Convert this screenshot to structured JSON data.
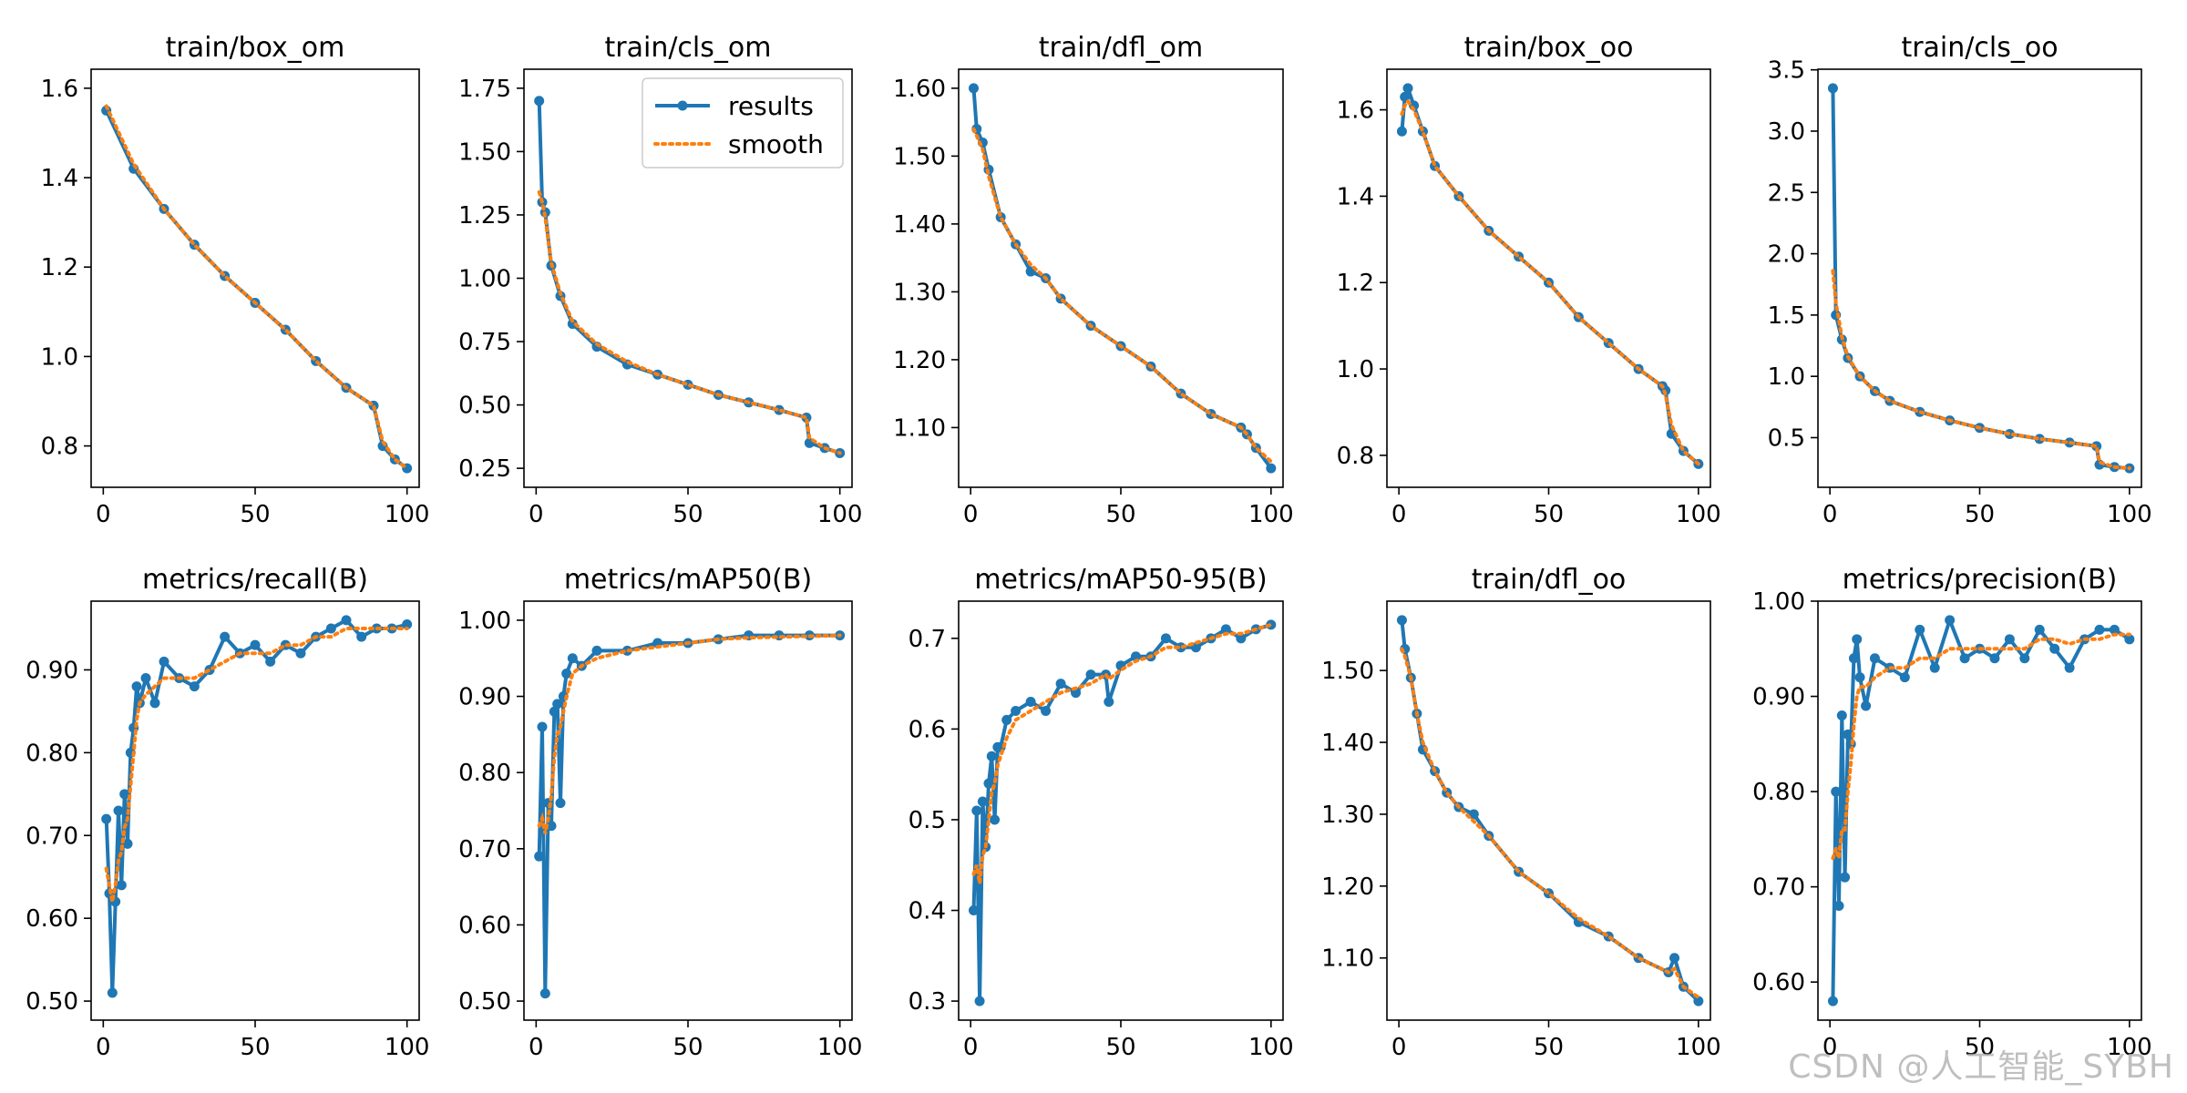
{
  "watermark": "CSDN @人工智能_SYBH",
  "style": {
    "results_color": "#1f77b4",
    "smooth_color": "#ff7f0e"
  },
  "legend": {
    "entries": [
      "results",
      "smooth"
    ],
    "panel": 1,
    "placement": "upper-right"
  },
  "chart_data": [
    {
      "type": "line",
      "title": "train/box_om",
      "xlim": [
        0,
        100
      ],
      "xticks": [
        0,
        50,
        100
      ],
      "ylim": [
        0.75,
        1.6
      ],
      "yticks": [
        0.8,
        1.0,
        1.2,
        1.4,
        1.6
      ],
      "x": [
        1,
        10,
        20,
        30,
        40,
        50,
        60,
        70,
        80,
        89,
        92,
        96,
        100
      ],
      "series": [
        {
          "name": "results",
          "values": [
            1.55,
            1.42,
            1.33,
            1.25,
            1.18,
            1.12,
            1.06,
            0.99,
            0.93,
            0.89,
            0.8,
            0.77,
            0.75
          ]
        },
        {
          "name": "smooth",
          "values": [
            1.56,
            1.43,
            1.33,
            1.25,
            1.18,
            1.12,
            1.06,
            0.99,
            0.93,
            0.89,
            0.81,
            0.77,
            0.75
          ]
        }
      ]
    },
    {
      "type": "line",
      "title": "train/cls_om",
      "xlim": [
        0,
        100
      ],
      "xticks": [
        0,
        50,
        100
      ],
      "ylim": [
        0.25,
        1.75
      ],
      "yticks": [
        0.25,
        0.5,
        0.75,
        1.0,
        1.25,
        1.5,
        1.75
      ],
      "x": [
        1,
        2,
        3,
        5,
        8,
        12,
        20,
        30,
        40,
        50,
        60,
        70,
        80,
        89,
        90,
        95,
        100
      ],
      "series": [
        {
          "name": "results",
          "values": [
            1.7,
            1.3,
            1.26,
            1.05,
            0.93,
            0.82,
            0.73,
            0.66,
            0.62,
            0.58,
            0.54,
            0.51,
            0.48,
            0.45,
            0.35,
            0.33,
            0.31
          ]
        },
        {
          "name": "smooth",
          "values": [
            1.34,
            1.3,
            1.24,
            1.06,
            0.94,
            0.83,
            0.74,
            0.67,
            0.62,
            0.58,
            0.54,
            0.51,
            0.48,
            0.45,
            0.37,
            0.33,
            0.31
          ]
        }
      ]
    },
    {
      "type": "line",
      "title": "train/dfl_om",
      "xlim": [
        0,
        100
      ],
      "xticks": [
        0,
        50,
        100
      ],
      "ylim": [
        1.04,
        1.6
      ],
      "yticks": [
        1.1,
        1.2,
        1.3,
        1.4,
        1.5,
        1.6
      ],
      "x": [
        1,
        2,
        4,
        6,
        10,
        15,
        20,
        25,
        30,
        40,
        50,
        60,
        70,
        80,
        90,
        92,
        95,
        100
      ],
      "series": [
        {
          "name": "results",
          "values": [
            1.6,
            1.54,
            1.52,
            1.48,
            1.41,
            1.37,
            1.33,
            1.32,
            1.29,
            1.25,
            1.22,
            1.19,
            1.15,
            1.12,
            1.1,
            1.09,
            1.07,
            1.04
          ]
        },
        {
          "name": "smooth",
          "values": [
            1.54,
            1.53,
            1.51,
            1.47,
            1.41,
            1.37,
            1.34,
            1.32,
            1.29,
            1.25,
            1.22,
            1.19,
            1.15,
            1.12,
            1.1,
            1.09,
            1.07,
            1.05
          ]
        }
      ]
    },
    {
      "type": "line",
      "title": "train/box_oo",
      "xlim": [
        0,
        100
      ],
      "xticks": [
        0,
        50,
        100
      ],
      "ylim": [
        0.77,
        1.65
      ],
      "yticks": [
        0.8,
        1.0,
        1.2,
        1.4,
        1.6
      ],
      "x": [
        1,
        2,
        3,
        5,
        8,
        12,
        20,
        30,
        40,
        50,
        60,
        70,
        80,
        88,
        89,
        91,
        95,
        100
      ],
      "series": [
        {
          "name": "results",
          "values": [
            1.55,
            1.63,
            1.65,
            1.61,
            1.55,
            1.47,
            1.4,
            1.32,
            1.26,
            1.2,
            1.12,
            1.06,
            1.0,
            0.96,
            0.95,
            0.85,
            0.81,
            0.78
          ]
        },
        {
          "name": "smooth",
          "values": [
            1.59,
            1.61,
            1.62,
            1.6,
            1.55,
            1.47,
            1.4,
            1.32,
            1.26,
            1.2,
            1.12,
            1.06,
            1.0,
            0.96,
            0.94,
            0.87,
            0.81,
            0.78
          ]
        }
      ]
    },
    {
      "type": "line",
      "title": "train/cls_oo",
      "xlim": [
        0,
        100
      ],
      "xticks": [
        0,
        50,
        100
      ],
      "ylim": [
        0.25,
        3.35
      ],
      "yticks": [
        0.5,
        1.0,
        1.5,
        2.0,
        2.5,
        3.0,
        3.5
      ],
      "x": [
        1,
        2,
        4,
        6,
        10,
        15,
        20,
        30,
        40,
        50,
        60,
        70,
        80,
        89,
        90,
        95,
        100
      ],
      "series": [
        {
          "name": "results",
          "values": [
            3.35,
            1.5,
            1.3,
            1.15,
            1.0,
            0.88,
            0.8,
            0.71,
            0.64,
            0.58,
            0.53,
            0.49,
            0.46,
            0.43,
            0.28,
            0.26,
            0.25
          ]
        },
        {
          "name": "smooth",
          "values": [
            1.86,
            1.6,
            1.32,
            1.16,
            1.0,
            0.88,
            0.8,
            0.71,
            0.64,
            0.58,
            0.53,
            0.49,
            0.46,
            0.43,
            0.3,
            0.26,
            0.25
          ]
        }
      ]
    },
    {
      "type": "line",
      "title": "metrics/recall(B)",
      "xlim": [
        0,
        100
      ],
      "xticks": [
        0,
        50,
        100
      ],
      "ylim": [
        0.5,
        0.96
      ],
      "yticks": [
        0.5,
        0.6,
        0.7,
        0.8,
        0.9
      ],
      "x": [
        1,
        2,
        3,
        4,
        5,
        6,
        7,
        8,
        9,
        10,
        11,
        12,
        14,
        17,
        20,
        25,
        30,
        35,
        40,
        45,
        50,
        55,
        60,
        65,
        70,
        75,
        80,
        85,
        90,
        95,
        100
      ],
      "series": [
        {
          "name": "results",
          "values": [
            0.72,
            0.63,
            0.51,
            0.62,
            0.73,
            0.64,
            0.75,
            0.69,
            0.8,
            0.83,
            0.88,
            0.86,
            0.89,
            0.86,
            0.91,
            0.89,
            0.88,
            0.9,
            0.94,
            0.92,
            0.93,
            0.91,
            0.93,
            0.92,
            0.94,
            0.95,
            0.96,
            0.94,
            0.95,
            0.95,
            0.955
          ]
        },
        {
          "name": "smooth",
          "values": [
            0.66,
            0.64,
            0.62,
            0.64,
            0.67,
            0.68,
            0.71,
            0.72,
            0.76,
            0.8,
            0.84,
            0.86,
            0.87,
            0.88,
            0.89,
            0.89,
            0.89,
            0.9,
            0.91,
            0.92,
            0.92,
            0.92,
            0.93,
            0.93,
            0.94,
            0.94,
            0.95,
            0.95,
            0.95,
            0.95,
            0.95
          ]
        }
      ]
    },
    {
      "type": "line",
      "title": "metrics/mAP50",
      "display_title": "metrics/mAP50(B)",
      "xlim": [
        0,
        100
      ],
      "xticks": [
        0,
        50,
        100
      ],
      "ylim": [
        0.5,
        1.0
      ],
      "yticks": [
        0.5,
        0.6,
        0.7,
        0.8,
        0.9,
        1.0
      ],
      "x": [
        1,
        2,
        3,
        4,
        5,
        6,
        7,
        8,
        9,
        10,
        12,
        15,
        20,
        30,
        40,
        50,
        60,
        70,
        80,
        90,
        100
      ],
      "series": [
        {
          "name": "results",
          "values": [
            0.69,
            0.86,
            0.51,
            0.76,
            0.73,
            0.88,
            0.89,
            0.76,
            0.9,
            0.93,
            0.95,
            0.94,
            0.96,
            0.96,
            0.97,
            0.97,
            0.975,
            0.98,
            0.98,
            0.98,
            0.98
          ]
        },
        {
          "name": "smooth",
          "values": [
            0.73,
            0.74,
            0.72,
            0.74,
            0.77,
            0.82,
            0.85,
            0.86,
            0.88,
            0.9,
            0.93,
            0.94,
            0.95,
            0.96,
            0.965,
            0.97,
            0.975,
            0.977,
            0.978,
            0.979,
            0.98
          ]
        }
      ]
    },
    {
      "type": "line",
      "title": "metrics/mAP50-95(B)",
      "xlim": [
        0,
        100
      ],
      "xticks": [
        0,
        50,
        100
      ],
      "ylim": [
        0.3,
        0.72
      ],
      "yticks": [
        0.3,
        0.4,
        0.5,
        0.6,
        0.7
      ],
      "x": [
        1,
        2,
        3,
        4,
        5,
        6,
        7,
        8,
        9,
        10,
        12,
        15,
        20,
        25,
        30,
        35,
        40,
        45,
        46,
        50,
        55,
        60,
        65,
        70,
        75,
        80,
        85,
        90,
        95,
        100
      ],
      "series": [
        {
          "name": "results",
          "values": [
            0.4,
            0.51,
            0.3,
            0.52,
            0.47,
            0.54,
            0.57,
            0.5,
            0.58,
            0.58,
            0.61,
            0.62,
            0.63,
            0.62,
            0.65,
            0.64,
            0.66,
            0.66,
            0.63,
            0.67,
            0.68,
            0.68,
            0.7,
            0.69,
            0.69,
            0.7,
            0.71,
            0.7,
            0.71,
            0.715
          ]
        },
        {
          "name": "smooth",
          "values": [
            0.44,
            0.45,
            0.43,
            0.46,
            0.47,
            0.5,
            0.53,
            0.54,
            0.56,
            0.57,
            0.59,
            0.61,
            0.62,
            0.63,
            0.64,
            0.645,
            0.65,
            0.66,
            0.655,
            0.665,
            0.675,
            0.68,
            0.69,
            0.69,
            0.695,
            0.7,
            0.705,
            0.705,
            0.71,
            0.715
          ]
        }
      ]
    },
    {
      "type": "line",
      "title": "train/dfl_oo",
      "xlim": [
        0,
        100
      ],
      "xticks": [
        0,
        50,
        100
      ],
      "ylim": [
        1.04,
        1.57
      ],
      "yticks": [
        1.1,
        1.2,
        1.3,
        1.4,
        1.5
      ],
      "x": [
        1,
        2,
        4,
        6,
        8,
        12,
        16,
        20,
        25,
        30,
        40,
        50,
        60,
        70,
        80,
        90,
        92,
        95,
        100
      ],
      "series": [
        {
          "name": "results",
          "values": [
            1.57,
            1.53,
            1.49,
            1.44,
            1.39,
            1.36,
            1.33,
            1.31,
            1.3,
            1.27,
            1.22,
            1.19,
            1.15,
            1.13,
            1.1,
            1.08,
            1.1,
            1.06,
            1.04
          ]
        },
        {
          "name": "smooth",
          "values": [
            1.53,
            1.52,
            1.49,
            1.44,
            1.4,
            1.36,
            1.33,
            1.31,
            1.29,
            1.27,
            1.22,
            1.19,
            1.155,
            1.13,
            1.1,
            1.08,
            1.085,
            1.06,
            1.045
          ]
        }
      ]
    },
    {
      "type": "line",
      "title": "metrics/precision(B)",
      "xlim": [
        0,
        100
      ],
      "xticks": [
        0,
        50,
        100
      ],
      "ylim": [
        0.58,
        0.98
      ],
      "yticks": [
        0.6,
        0.7,
        0.8,
        0.9,
        1.0
      ],
      "x": [
        1,
        2,
        3,
        4,
        5,
        6,
        7,
        8,
        9,
        10,
        12,
        15,
        20,
        25,
        30,
        35,
        40,
        45,
        50,
        55,
        60,
        65,
        70,
        75,
        80,
        85,
        90,
        95,
        100
      ],
      "series": [
        {
          "name": "results",
          "values": [
            0.58,
            0.8,
            0.68,
            0.88,
            0.71,
            0.86,
            0.85,
            0.94,
            0.96,
            0.92,
            0.89,
            0.94,
            0.93,
            0.92,
            0.97,
            0.93,
            0.98,
            0.94,
            0.95,
            0.94,
            0.96,
            0.94,
            0.97,
            0.95,
            0.93,
            0.96,
            0.97,
            0.97,
            0.96
          ]
        },
        {
          "name": "smooth",
          "values": [
            0.73,
            0.74,
            0.73,
            0.76,
            0.76,
            0.8,
            0.83,
            0.87,
            0.9,
            0.91,
            0.91,
            0.92,
            0.93,
            0.93,
            0.94,
            0.94,
            0.95,
            0.95,
            0.95,
            0.95,
            0.95,
            0.95,
            0.96,
            0.96,
            0.955,
            0.96,
            0.96,
            0.965,
            0.965
          ]
        }
      ]
    }
  ]
}
